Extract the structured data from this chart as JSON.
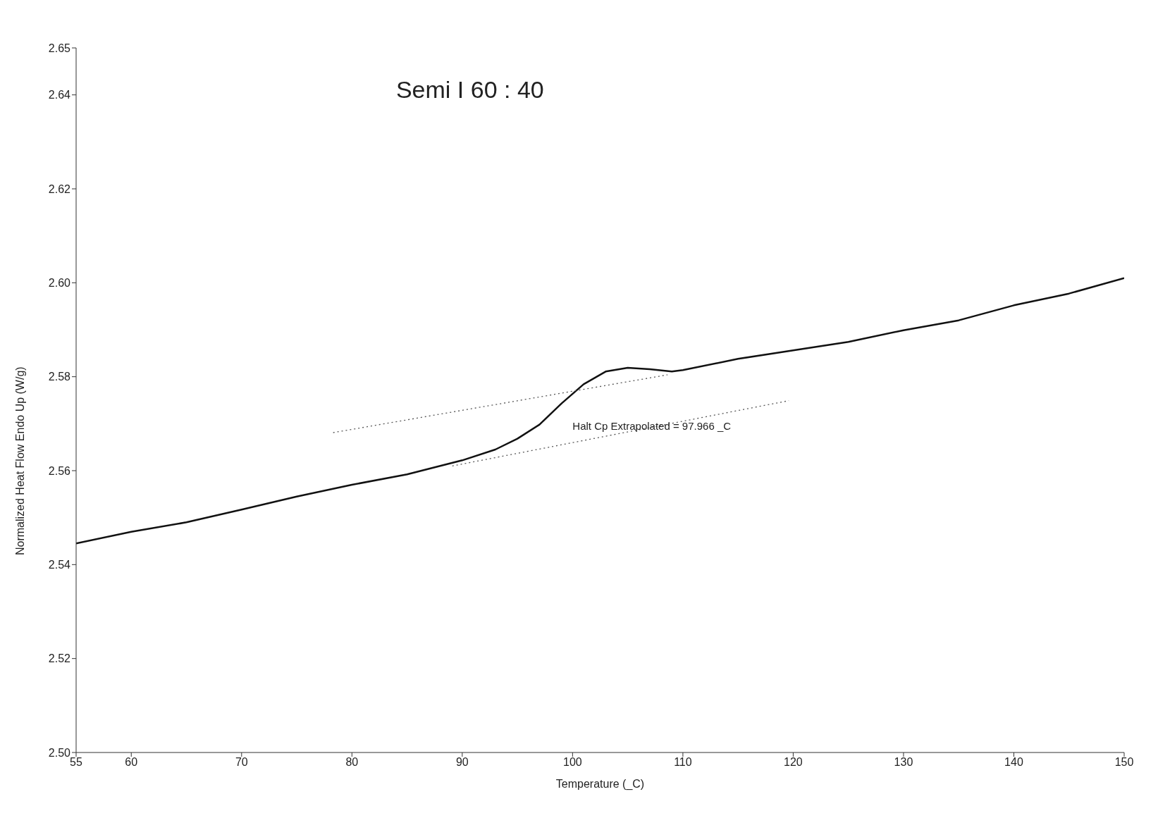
{
  "chart_data": {
    "type": "line",
    "title": "Semi I 60 : 40",
    "xlabel": "Temperature (_C)",
    "ylabel": "Normalized Heat Flow Endo Up (W/g)",
    "xlim": [
      55,
      150
    ],
    "xticks": [
      55,
      60,
      70,
      80,
      90,
      100,
      110,
      120,
      130,
      140,
      {
        "value": 150,
        "label": "150"
      }
    ],
    "ylim": [
      2.5,
      2.65
    ],
    "yticks": [
      {
        "value": 2.5,
        "label": "2.50"
      },
      {
        "value": 2.52,
        "label": "2.52"
      },
      {
        "value": 2.54,
        "label": "2.54"
      },
      {
        "value": 2.56,
        "label": "2.56"
      },
      {
        "value": 2.58,
        "label": "2.58"
      },
      {
        "value": 2.6,
        "label": "2.60"
      },
      {
        "value": 2.62,
        "label": "2.62"
      },
      {
        "value": 2.64,
        "label": "2.64"
      },
      {
        "value": 2.65,
        "label": "2.65"
      }
    ],
    "grid": false,
    "legend": false,
    "marker": "none",
    "annotations": [
      "Halt Cp Extrapolated = 97.966 _C"
    ],
    "series": [
      {
        "color": "#111111",
        "line_style": "solid",
        "x": [
          55,
          60,
          65,
          70,
          75,
          80,
          85,
          90,
          93,
          95,
          97,
          99,
          101,
          103,
          105,
          107,
          109,
          110,
          115,
          120,
          125,
          130,
          135,
          140,
          145,
          150
        ],
        "values": [
          2.5445,
          2.547,
          2.549,
          2.5517,
          2.5545,
          2.557,
          2.5592,
          2.5622,
          2.5645,
          2.5668,
          2.5698,
          2.5743,
          2.5784,
          2.5811,
          2.5819,
          2.5816,
          2.5811,
          2.5814,
          2.5838,
          2.5856,
          2.5874,
          2.5899,
          2.592,
          2.5952,
          2.5977,
          2.601
        ]
      },
      {
        "type": "line",
        "color": "#555555",
        "line_style": "dotted",
        "x": [
          78.3,
          108.6
        ],
        "values": [
          2.5681,
          2.5804
        ]
      },
      {
        "type": "line",
        "color": "#555555",
        "line_style": "dotted",
        "x": [
          89.1,
          119.6
        ],
        "values": [
          2.561,
          2.5749
        ]
      }
    ]
  }
}
